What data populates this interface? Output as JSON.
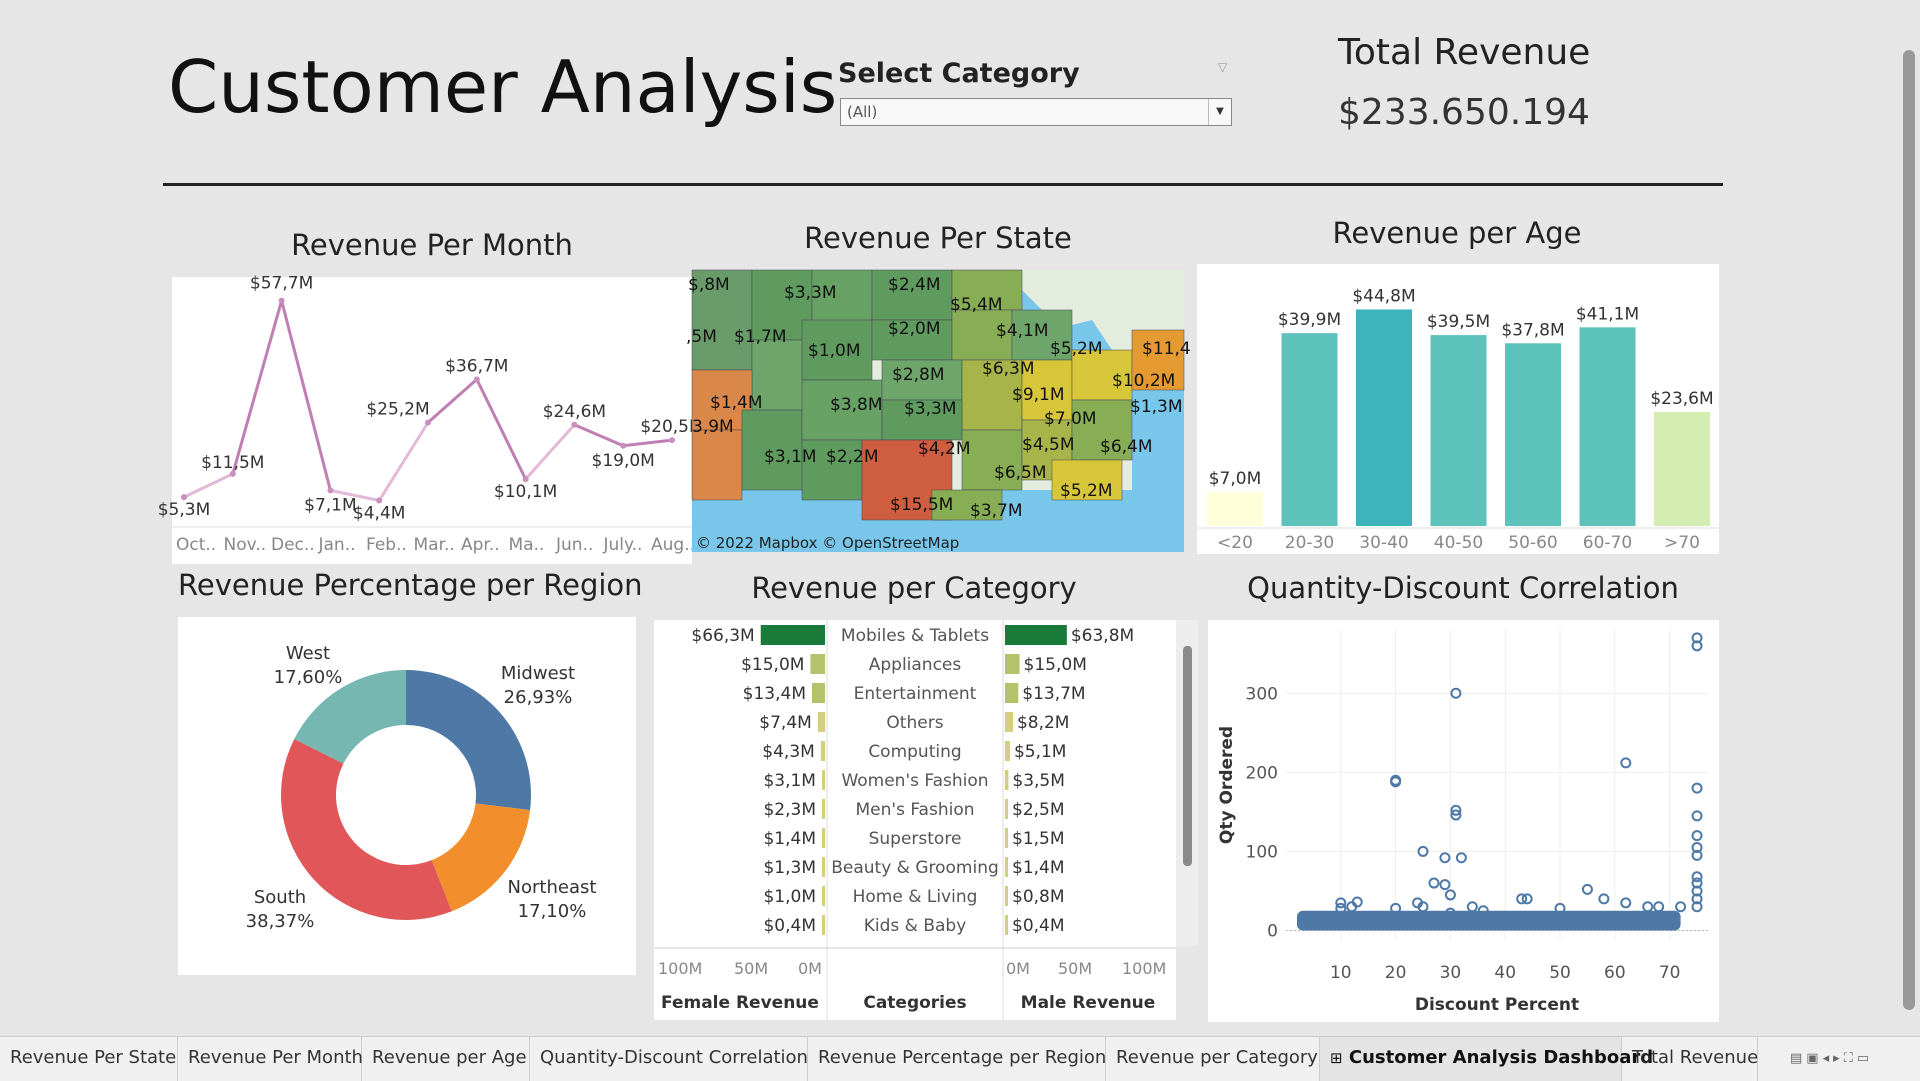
{
  "header": {
    "title": "Customer Analysis",
    "select_label": "Select Category",
    "select_value": "(All)",
    "total_revenue_label": "Total Revenue",
    "total_revenue_value": "$233.650.194"
  },
  "month_chart": {
    "title": "Revenue Per Month",
    "chart_data": {
      "type": "line",
      "x": [
        "Oct..",
        "Nov..",
        "Dec..",
        "Jan..",
        "Feb..",
        "Mar..",
        "Apr..",
        "Ma..",
        "Jun..",
        "July..",
        "Aug.."
      ],
      "values": [
        5.3,
        11.5,
        57.7,
        7.1,
        4.4,
        25.2,
        36.7,
        10.1,
        24.6,
        19.0,
        20.5
      ],
      "labels": [
        "$5,3M",
        "$11,5M",
        "$57,7M",
        "$7,1M",
        "$4,4M",
        "$25,2M",
        "$36,7M",
        "$10,1M",
        "$24,6M",
        "$19,0M",
        "$20,5M"
      ],
      "ylim": [
        0,
        60
      ]
    }
  },
  "state_map": {
    "title": "Revenue Per State",
    "attribution": "© 2022 Mapbox © OpenStreetMap",
    "labels": [
      "$,8M",
      "$3,3M",
      "$2,4M",
      "$5,4M",
      ",5M",
      "$1,7M",
      "$1,0M",
      "$2,0M",
      "$4,1M",
      "$5,2M",
      "$11,4",
      "$2,8M",
      "$6,3M",
      "$10,2M",
      "$9,1M",
      "$1,4M",
      "$3,8M",
      "$3,3M",
      "$1,3M",
      "3,9M",
      "$7,0M",
      "$4,5M",
      "$4,2M",
      "$6,4M",
      "$3,1M",
      "$2,2M",
      "$6,5M",
      "$5,2M",
      "$15,5M",
      "$3,7M"
    ]
  },
  "age_chart": {
    "title": "Revenue per Age",
    "chart_data": {
      "type": "bar",
      "categories": [
        "<20",
        "20-30",
        "30-40",
        "40-50",
        "50-60",
        "60-70",
        ">70"
      ],
      "values": [
        7.0,
        39.9,
        44.8,
        39.5,
        37.8,
        41.1,
        23.6
      ],
      "labels": [
        "$7,0M",
        "$39,9M",
        "$44,8M",
        "$39,5M",
        "$37,8M",
        "$41,1M",
        "$23,6M"
      ],
      "colors": [
        "#ffffd9",
        "#5ec2bc",
        "#3db3bd",
        "#5ec2bc",
        "#5ec2bc",
        "#5ec2bc",
        "#d4edb0"
      ]
    }
  },
  "region_chart": {
    "title": "Revenue Percentage per Region",
    "chart_data": {
      "type": "pie",
      "categories": [
        "Midwest",
        "Northeast",
        "South",
        "West"
      ],
      "values": [
        26.93,
        17.1,
        38.37,
        17.6
      ],
      "labels": [
        "26,93%",
        "17,10%",
        "38,37%",
        "17,60%"
      ],
      "colors": [
        "#4e79a7",
        "#f28e2b",
        "#e15759",
        "#76b7b2"
      ]
    }
  },
  "category_chart": {
    "title": "Revenue per Category",
    "chart_data": {
      "type": "bar",
      "categories": [
        "Mobiles & Tablets",
        "Appliances",
        "Entertainment",
        "Others",
        "Computing",
        "Women's Fashion",
        "Men's Fashion",
        "Superstore",
        "Beauty & Grooming",
        "Home & Living",
        "Kids & Baby"
      ],
      "series": [
        {
          "name": "Female Revenue",
          "values": [
            66.3,
            15.0,
            13.4,
            7.4,
            4.3,
            3.1,
            2.3,
            1.4,
            1.3,
            1.0,
            0.4
          ],
          "labels": [
            "$66,3M",
            "$15,0M",
            "$13,4M",
            "$7,4M",
            "$4,3M",
            "$3,1M",
            "$2,3M",
            "$1,4M",
            "$1,3M",
            "$1,0M",
            "$0,4M"
          ]
        },
        {
          "name": "Male Revenue",
          "values": [
            63.8,
            15.0,
            13.7,
            8.2,
            5.1,
            3.5,
            2.5,
            1.5,
            1.4,
            0.8,
            0.4
          ],
          "labels": [
            "$63,8M",
            "$15,0M",
            "$13,7M",
            "$8,2M",
            "$5,1M",
            "$3,5M",
            "$2,5M",
            "$1,5M",
            "$1,4M",
            "$0,8M",
            "$0,4M"
          ]
        }
      ],
      "female_axis_ticks": [
        "100M",
        "50M",
        "0M"
      ],
      "male_axis_ticks": [
        "0M",
        "50M",
        "100M"
      ],
      "center_header": "Categories"
    }
  },
  "scatter_chart": {
    "title": "Quantity-Discount Correlation",
    "chart_data": {
      "type": "scatter",
      "xlabel": "Discount Percent",
      "ylabel": "Qty Ordered",
      "xticks": [
        10,
        20,
        30,
        40,
        50,
        60,
        70
      ],
      "yticks": [
        0,
        100,
        200,
        300
      ],
      "xlim": [
        0,
        77
      ],
      "ylim": [
        -12,
        380
      ],
      "points": [
        [
          75,
          370
        ],
        [
          75,
          360
        ],
        [
          31,
          300
        ],
        [
          20,
          190
        ],
        [
          20,
          188
        ],
        [
          62,
          212
        ],
        [
          31,
          152
        ],
        [
          31,
          146
        ],
        [
          75,
          180
        ],
        [
          75,
          145
        ],
        [
          75,
          120
        ],
        [
          75,
          105
        ],
        [
          75,
          95
        ],
        [
          75,
          68
        ],
        [
          75,
          60
        ],
        [
          75,
          50
        ],
        [
          75,
          40
        ],
        [
          75,
          30
        ],
        [
          25,
          100
        ],
        [
          29,
          92
        ],
        [
          32,
          92
        ],
        [
          27,
          60
        ],
        [
          29,
          58
        ],
        [
          30,
          45
        ],
        [
          55,
          52
        ],
        [
          43,
          40
        ],
        [
          44,
          40
        ],
        [
          10,
          35
        ],
        [
          10,
          28
        ],
        [
          12,
          30
        ],
        [
          13,
          36
        ],
        [
          20,
          28
        ],
        [
          24,
          35
        ],
        [
          25,
          30
        ],
        [
          30,
          22
        ],
        [
          34,
          30
        ],
        [
          36,
          25
        ],
        [
          50,
          28
        ],
        [
          58,
          40
        ],
        [
          62,
          35
        ],
        [
          66,
          30
        ],
        [
          68,
          30
        ],
        [
          72,
          30
        ]
      ],
      "dense_band": {
        "x_from": 2,
        "x_to": 72,
        "y_from": 0,
        "y_to": 25
      }
    }
  },
  "tabs": [
    "Revenue Per State",
    "Revenue Per Month",
    "Revenue per Age",
    "Quantity-Discount Correlation",
    "Revenue Percentage per Region",
    "Revenue per Category",
    "Customer Analysis Dashboard",
    "Total Revenue"
  ],
  "active_tab": "Customer Analysis Dashboard"
}
